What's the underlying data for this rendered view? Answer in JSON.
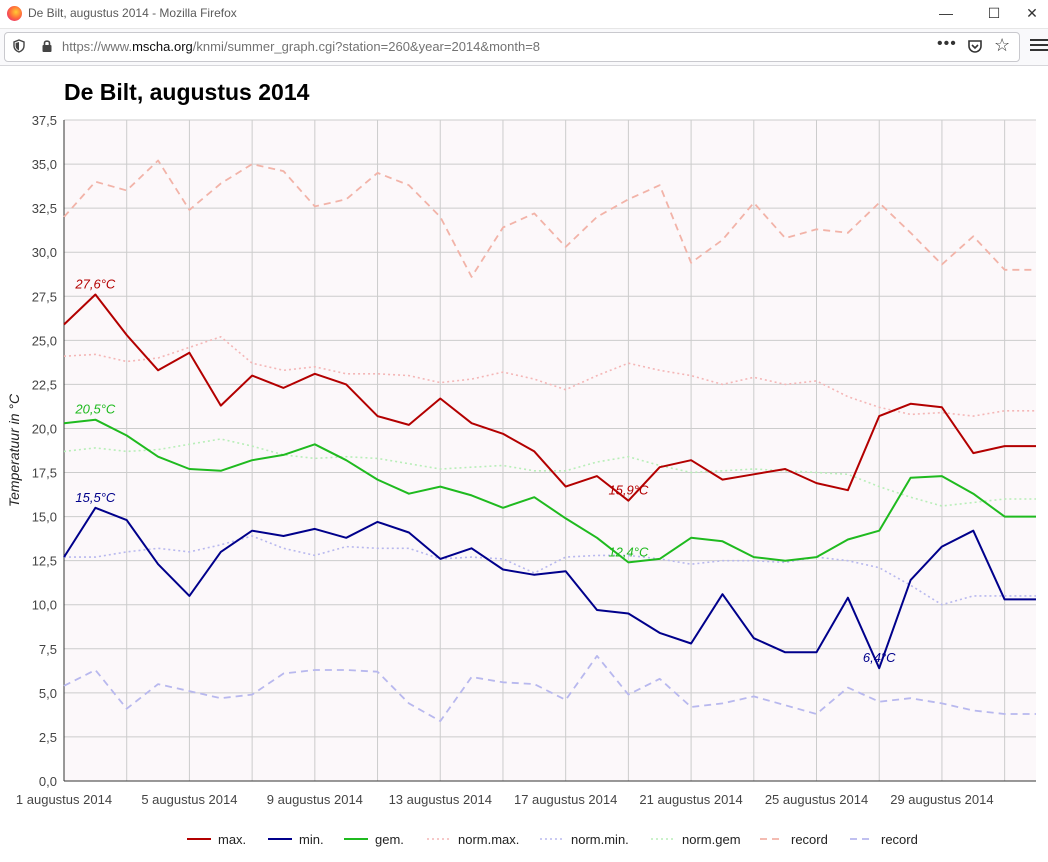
{
  "window": {
    "title": "De Bilt, augustus 2014 - Mozilla Firefox",
    "url_prefix": "https://www.",
    "url_host": "mscha.org",
    "url_path": "/knmi/summer_graph.cgi?station=260&year=2014&month=8",
    "minimize_label": "—",
    "maximize_label": "☐",
    "close_label": "✕",
    "more_label": "•••",
    "star_label": "☆"
  },
  "colors": {
    "max": "#b30000",
    "min": "#00008b",
    "gem": "#1fba1f",
    "norm_max": "#f4b6b6",
    "norm_min": "#b8b8ee",
    "norm_gem": "#b8eeb8",
    "record_max": "#f2b3a8",
    "record_min": "#b8b8ee",
    "plot_background": "#fcf8fa",
    "grid": "#cccccc"
  },
  "chart_data": {
    "type": "line",
    "title": "De Bilt, augustus 2014",
    "ylabel": "Temperatuur in °C",
    "xlabel": "",
    "ylim": [
      0,
      37.5
    ],
    "grid": true,
    "legend_position": "bottom",
    "x_ticks": [
      "1 augustus 2014",
      "5 augustus 2014",
      "9 augustus 2014",
      "13 augustus 2014",
      "17 augustus 2014",
      "21 augustus 2014",
      "25 augustus 2014",
      "29 augustus 2014"
    ],
    "y_ticks": [
      "0,0",
      "2,5",
      "5,0",
      "7,5",
      "10,0",
      "12,5",
      "15,0",
      "17,5",
      "20,0",
      "22,5",
      "25,0",
      "27,5",
      "30,0",
      "32,5",
      "35,0",
      "37,5"
    ],
    "x": [
      1,
      2,
      3,
      4,
      5,
      6,
      7,
      8,
      9,
      10,
      11,
      12,
      13,
      14,
      15,
      16,
      17,
      18,
      19,
      20,
      21,
      22,
      23,
      24,
      25,
      26,
      27,
      28,
      29,
      30,
      31,
      32
    ],
    "series": [
      {
        "key": "max",
        "name": "max.",
        "style": "solid",
        "values": [
          25.9,
          27.6,
          25.3,
          23.3,
          24.3,
          21.3,
          23.0,
          22.3,
          23.1,
          22.5,
          20.7,
          20.2,
          21.7,
          20.3,
          19.7,
          18.7,
          16.7,
          17.3,
          15.9,
          17.8,
          18.2,
          17.1,
          17.4,
          17.7,
          16.9,
          16.5,
          20.7,
          21.4,
          21.2,
          18.6,
          19.0,
          19.0
        ]
      },
      {
        "key": "min",
        "name": "min.",
        "style": "solid",
        "values": [
          12.7,
          15.5,
          14.8,
          12.3,
          10.5,
          13.0,
          14.2,
          13.9,
          14.3,
          13.8,
          14.7,
          14.1,
          12.6,
          13.2,
          12.0,
          11.7,
          11.9,
          9.7,
          9.5,
          8.4,
          7.8,
          10.6,
          8.1,
          7.3,
          7.3,
          10.4,
          6.4,
          11.4,
          13.3,
          14.2,
          10.3,
          10.3
        ]
      },
      {
        "key": "gem",
        "name": "gem.",
        "style": "solid",
        "values": [
          20.3,
          20.5,
          19.6,
          18.4,
          17.7,
          17.6,
          18.2,
          18.5,
          19.1,
          18.2,
          17.1,
          16.3,
          16.7,
          16.2,
          15.5,
          16.1,
          14.9,
          13.8,
          12.4,
          12.6,
          13.8,
          13.6,
          12.7,
          12.5,
          12.7,
          13.7,
          14.2,
          17.2,
          17.3,
          16.3,
          15.0,
          15.0
        ]
      },
      {
        "key": "norm_max",
        "name": "norm.max.",
        "style": "dotted",
        "values": [
          24.1,
          24.2,
          23.8,
          24.0,
          24.6,
          25.2,
          23.7,
          23.3,
          23.5,
          23.1,
          23.1,
          23.0,
          22.6,
          22.8,
          23.2,
          22.8,
          22.2,
          23.0,
          23.7,
          23.3,
          23.0,
          22.5,
          22.9,
          22.5,
          22.7,
          21.8,
          21.2,
          20.8,
          20.9,
          20.7,
          21.0,
          21.0
        ]
      },
      {
        "key": "norm_min",
        "name": "norm.min.",
        "style": "dotted",
        "values": [
          12.7,
          12.7,
          13.0,
          13.2,
          13.0,
          13.4,
          13.9,
          13.2,
          12.8,
          13.3,
          13.2,
          13.2,
          12.6,
          12.7,
          12.6,
          11.8,
          12.7,
          12.8,
          12.8,
          12.6,
          12.3,
          12.5,
          12.5,
          12.4,
          12.7,
          12.5,
          12.1,
          11.1,
          10.0,
          10.5,
          10.5,
          10.5
        ]
      },
      {
        "key": "norm_gem",
        "name": "norm.gem",
        "style": "dotted",
        "values": [
          18.7,
          18.9,
          18.7,
          18.8,
          19.1,
          19.4,
          19.0,
          18.5,
          18.3,
          18.4,
          18.3,
          18.0,
          17.7,
          17.8,
          17.9,
          17.6,
          17.6,
          18.1,
          18.4,
          17.9,
          17.5,
          17.6,
          17.7,
          17.6,
          17.5,
          17.4,
          16.7,
          16.1,
          15.6,
          15.8,
          16.0,
          16.0
        ]
      },
      {
        "key": "record_max",
        "name": "record",
        "style": "dashed",
        "values": [
          32.0,
          34.0,
          33.5,
          35.2,
          32.4,
          33.9,
          35.0,
          34.6,
          32.6,
          33.0,
          34.5,
          33.8,
          32.0,
          28.6,
          31.4,
          32.2,
          30.3,
          32.0,
          33.0,
          33.8,
          29.4,
          30.7,
          32.8,
          30.8,
          31.3,
          31.1,
          32.8,
          31.1,
          29.3,
          30.9,
          29.0,
          29.0
        ]
      },
      {
        "key": "record_min",
        "name": "record",
        "style": "dashed",
        "values": [
          5.4,
          6.3,
          4.1,
          5.5,
          5.1,
          4.7,
          4.9,
          6.1,
          6.3,
          6.3,
          6.2,
          4.4,
          3.4,
          5.9,
          5.6,
          5.5,
          4.6,
          7.1,
          4.9,
          5.8,
          4.2,
          4.4,
          4.8,
          4.3,
          3.8,
          5.3,
          4.5,
          4.7,
          4.4,
          4.0,
          3.8,
          3.8
        ]
      }
    ],
    "annotations": [
      {
        "text": "27,6°C",
        "series": "max",
        "x": 2,
        "y": 27.6
      },
      {
        "text": "15,9°C",
        "series": "max",
        "x": 19,
        "y": 15.9
      },
      {
        "text": "20,5°C",
        "series": "gem",
        "x": 2,
        "y": 20.5
      },
      {
        "text": "12,4°C",
        "series": "gem",
        "x": 19,
        "y": 12.4
      },
      {
        "text": "15,5°C",
        "series": "min",
        "x": 2,
        "y": 15.5
      },
      {
        "text": "6,4°C",
        "series": "min",
        "x": 27,
        "y": 6.4
      }
    ]
  }
}
